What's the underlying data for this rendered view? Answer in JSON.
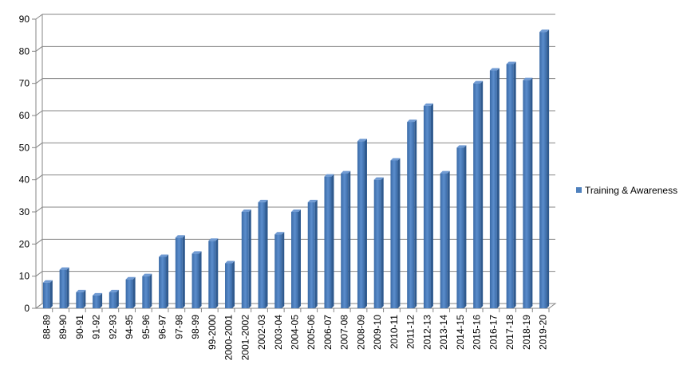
{
  "chart_data": {
    "type": "bar",
    "title": "",
    "xlabel": "",
    "ylabel": "",
    "ylim": [
      0,
      90
    ],
    "yticks": [
      0,
      10,
      20,
      30,
      40,
      50,
      60,
      70,
      80,
      90
    ],
    "grid": true,
    "legend_position": "right",
    "categories": [
      "88-89",
      "89-90",
      "90-91",
      "91-92",
      "92-93",
      "94-95",
      "95-96",
      "96-97",
      "97-98",
      "98-99",
      "99-2000",
      "2000-2001",
      "2001-2002",
      "2002-03",
      "2003-04",
      "2004-05",
      "2005-06",
      "2006-07",
      "2007-08",
      "2008-09",
      "2009-10",
      "2010-11",
      "2011-12",
      "2012-13",
      "2013-14",
      "2014-15",
      "2015-16",
      "2016-17",
      "2017-18",
      "2018-19",
      "2019-20"
    ],
    "series": [
      {
        "name": "Training & Awareness",
        "color": "#4F81BD",
        "values": [
          8,
          12,
          5,
          4,
          5,
          9,
          10,
          16,
          22,
          17,
          21,
          14,
          30,
          33,
          23,
          30,
          33,
          41,
          42,
          52,
          40,
          46,
          58,
          63,
          42,
          50,
          70,
          74,
          76,
          71,
          86
        ]
      }
    ]
  }
}
